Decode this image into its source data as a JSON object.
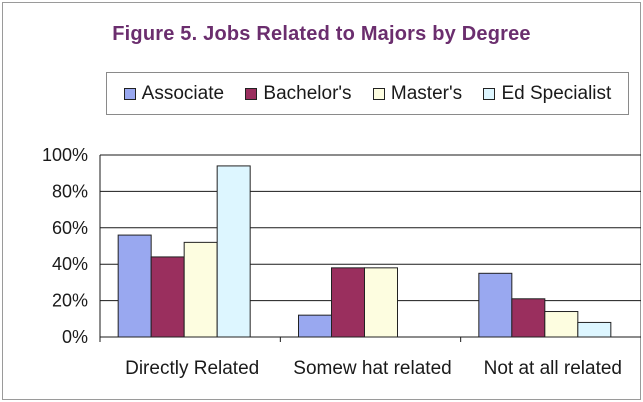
{
  "chart_data": {
    "type": "bar",
    "title": "Figure 5. Jobs Related to Majors by Degree",
    "xlabel": "",
    "ylabel": "",
    "categories": [
      "Directly Related",
      "Somew hat related",
      "Not at all related"
    ],
    "series": [
      {
        "name": "Associate",
        "color": "#99a8f0",
        "values": [
          56,
          12,
          35
        ]
      },
      {
        "name": "Bachelor's",
        "color": "#9a2f5e",
        "values": [
          44,
          38,
          21
        ]
      },
      {
        "name": "Master's",
        "color": "#fdfde0",
        "values": [
          52,
          38,
          14
        ]
      },
      {
        "name": "Ed Specialist",
        "color": "#ddf6ff",
        "values": [
          94,
          0,
          8
        ]
      }
    ],
    "ylim": [
      0,
      100
    ],
    "yticks": [
      "0%",
      "20%",
      "40%",
      "60%",
      "80%",
      "100%"
    ],
    "grid": true,
    "legend_position": "top"
  },
  "colors": {
    "title": "#6b2e6e",
    "gridline": "#1a1a1a",
    "bar_outline": "#222222"
  }
}
